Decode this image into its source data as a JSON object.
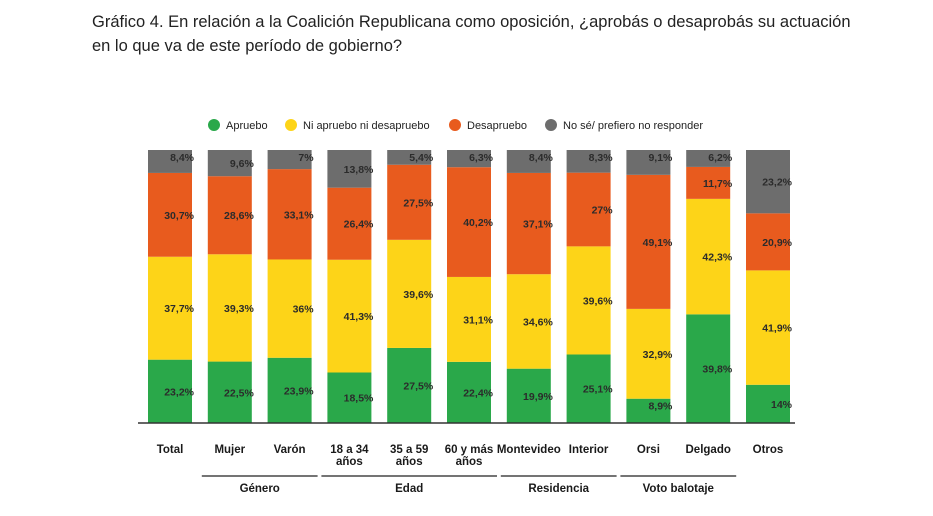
{
  "title": "Gráfico 4. En relación a la Coalición Republicana como oposición, ¿aprobás o desaprobás su actuación en lo que va de este período de gobierno?",
  "chart_data": {
    "type": "bar",
    "stacked": true,
    "percent_stacked": true,
    "legend_position": "top",
    "categories": [
      [
        "Total"
      ],
      [
        "Mujer"
      ],
      [
        "Varón"
      ],
      [
        "18 a 34",
        "años"
      ],
      [
        "35 a 59",
        "años"
      ],
      [
        "60 y más",
        "años"
      ],
      [
        "Montevideo"
      ],
      [
        "Interior"
      ],
      [
        "Orsi"
      ],
      [
        "Delgado"
      ],
      [
        "Otros"
      ]
    ],
    "series": [
      {
        "name": "Apruebo",
        "color": "#2aa84a",
        "values": [
          23.2,
          22.5,
          23.9,
          18.5,
          27.5,
          22.4,
          19.9,
          25.1,
          8.9,
          39.8,
          14
        ],
        "labels": [
          "23,2%",
          "22,5%",
          "23,9%",
          "18,5%",
          "27,5%",
          "22,4%",
          "19,9%",
          "25,1%",
          "8,9%",
          "39,8%",
          "14%"
        ]
      },
      {
        "name": "Ni apruebo ni desapruebo",
        "color": "#fdd418",
        "values": [
          37.7,
          39.3,
          36,
          41.3,
          39.6,
          31.1,
          34.6,
          39.6,
          32.9,
          42.3,
          41.9
        ],
        "labels": [
          "37,7%",
          "39,3%",
          "36%",
          "41,3%",
          "39,6%",
          "31,1%",
          "34,6%",
          "39,6%",
          "32,9%",
          "42,3%",
          "41,9%"
        ]
      },
      {
        "name": "Desapruebo",
        "color": "#e85b1e",
        "values": [
          30.7,
          28.6,
          33.1,
          26.4,
          27.5,
          40.2,
          37.1,
          27,
          49.1,
          11.7,
          20.9
        ],
        "labels": [
          "30,7%",
          "28,6%",
          "33,1%",
          "26,4%",
          "27,5%",
          "40,2%",
          "37,1%",
          "27%",
          "49,1%",
          "11,7%",
          "20,9%"
        ]
      },
      {
        "name": "No sé/ prefiero no responder",
        "color": "#6d6d6d",
        "values": [
          8.4,
          9.6,
          7,
          13.8,
          5.4,
          6.3,
          8.4,
          8.3,
          9.1,
          6.2,
          23.2
        ],
        "labels": [
          "8,4%",
          "9,6%",
          "7%",
          "13,8%",
          "5,4%",
          "6,3%",
          "8,4%",
          "8,3%",
          "9,1%",
          "6,2%",
          "23,2%"
        ]
      }
    ],
    "groups": [
      {
        "label": "Género",
        "start": 1,
        "end": 2
      },
      {
        "label": "Edad",
        "start": 3,
        "end": 5
      },
      {
        "label": "Residencia",
        "start": 6,
        "end": 7
      },
      {
        "label": "Voto balotaje",
        "start": 8,
        "end": 9
      }
    ],
    "ylim": [
      0,
      100
    ],
    "xlabel": "",
    "ylabel": ""
  }
}
